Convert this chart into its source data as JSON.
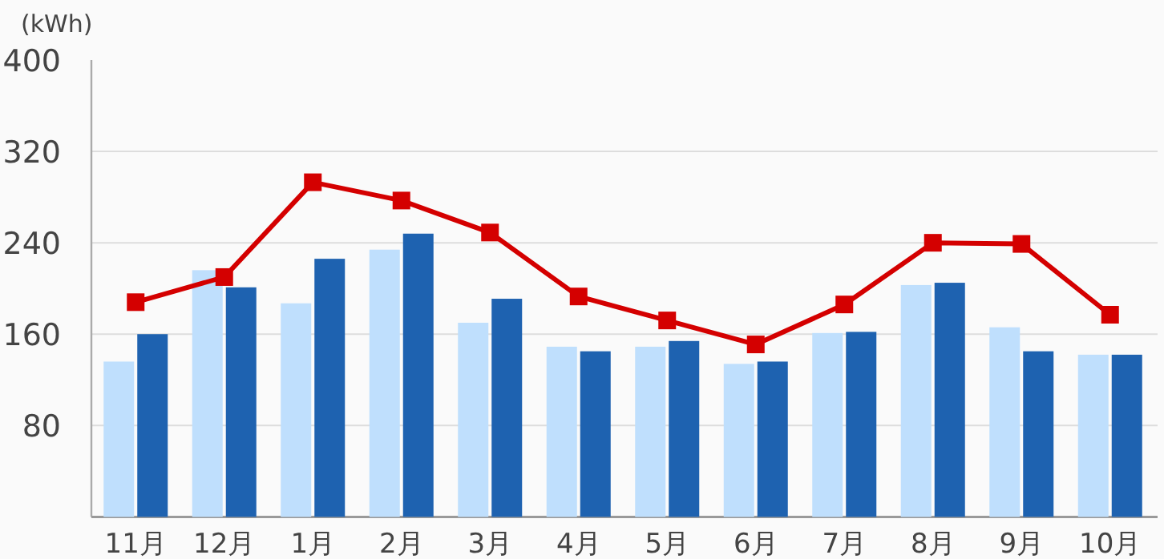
{
  "chart_data": {
    "type": "bar",
    "ylabel": "(kWh)",
    "categories": [
      "11月",
      "12月",
      "1月",
      "2月",
      "3月",
      "4月",
      "5月",
      "6月",
      "7月",
      "8月",
      "9月",
      "10月"
    ],
    "series": [
      {
        "color": "#bfdffd",
        "values": [
          136,
          216,
          187,
          234,
          170,
          149,
          149,
          134,
          161,
          203,
          166,
          142
        ]
      },
      {
        "color": "#1e62b0",
        "values": [
          160,
          201,
          226,
          248,
          191,
          145,
          154,
          136,
          162,
          205,
          145,
          142
        ]
      },
      {
        "type": "line",
        "color": "#d40000",
        "marker": "square",
        "values": [
          188,
          210,
          293,
          277,
          249,
          193,
          172,
          151,
          186,
          240,
          239,
          177
        ]
      }
    ],
    "ylim": [
      0,
      400
    ],
    "yticks": [
      80,
      160,
      240,
      320,
      400
    ],
    "grid": "y"
  }
}
